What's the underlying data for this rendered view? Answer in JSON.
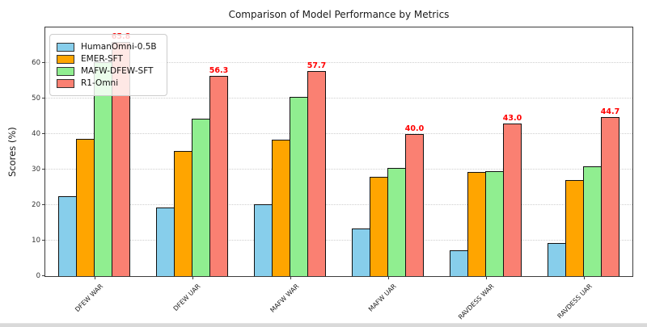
{
  "figure": {
    "background_color": "#ffffff",
    "bottom_strip_color": "#d9d9d9"
  },
  "chart_data": {
    "type": "bar",
    "title": "Comparison of Model Performance by Metrics",
    "xlabel": "",
    "ylabel": "Scores (%)",
    "ylim": [
      0,
      70
    ],
    "yticks": [
      0,
      10,
      20,
      30,
      40,
      50,
      60
    ],
    "grid": "horizontal-dotted",
    "grid_color": "#cfcfcf",
    "legend_position": "upper-left",
    "bar_edge_color": "#111111",
    "categories": [
      "DFEW WAR",
      "DFEW UAR",
      "MAFW WAR",
      "MAFW UAR",
      "RAVDESS WAR",
      "RAVDESS UAR"
    ],
    "series": [
      {
        "name": "HumanOmni-0.5B",
        "color": "#87CEEB",
        "values": [
          22.6,
          19.4,
          20.2,
          13.5,
          7.3,
          9.4
        ]
      },
      {
        "name": "EMER-SFT",
        "color": "#FFA500",
        "values": [
          38.7,
          35.3,
          38.4,
          28.0,
          29.3,
          27.1
        ]
      },
      {
        "name": "MAFW-DFEW-SFT",
        "color": "#90EE90",
        "values": [
          60.2,
          44.4,
          50.4,
          30.4,
          29.5,
          30.8
        ]
      },
      {
        "name": "R1-Omni",
        "color": "#FA8072",
        "values": [
          65.8,
          56.3,
          57.7,
          40.0,
          43.0,
          44.7
        ],
        "annotations": [
          "65.8",
          "56.3",
          "57.7",
          "40.0",
          "43.0",
          "44.7"
        ],
        "annotation_color": "#ff0000"
      }
    ]
  }
}
